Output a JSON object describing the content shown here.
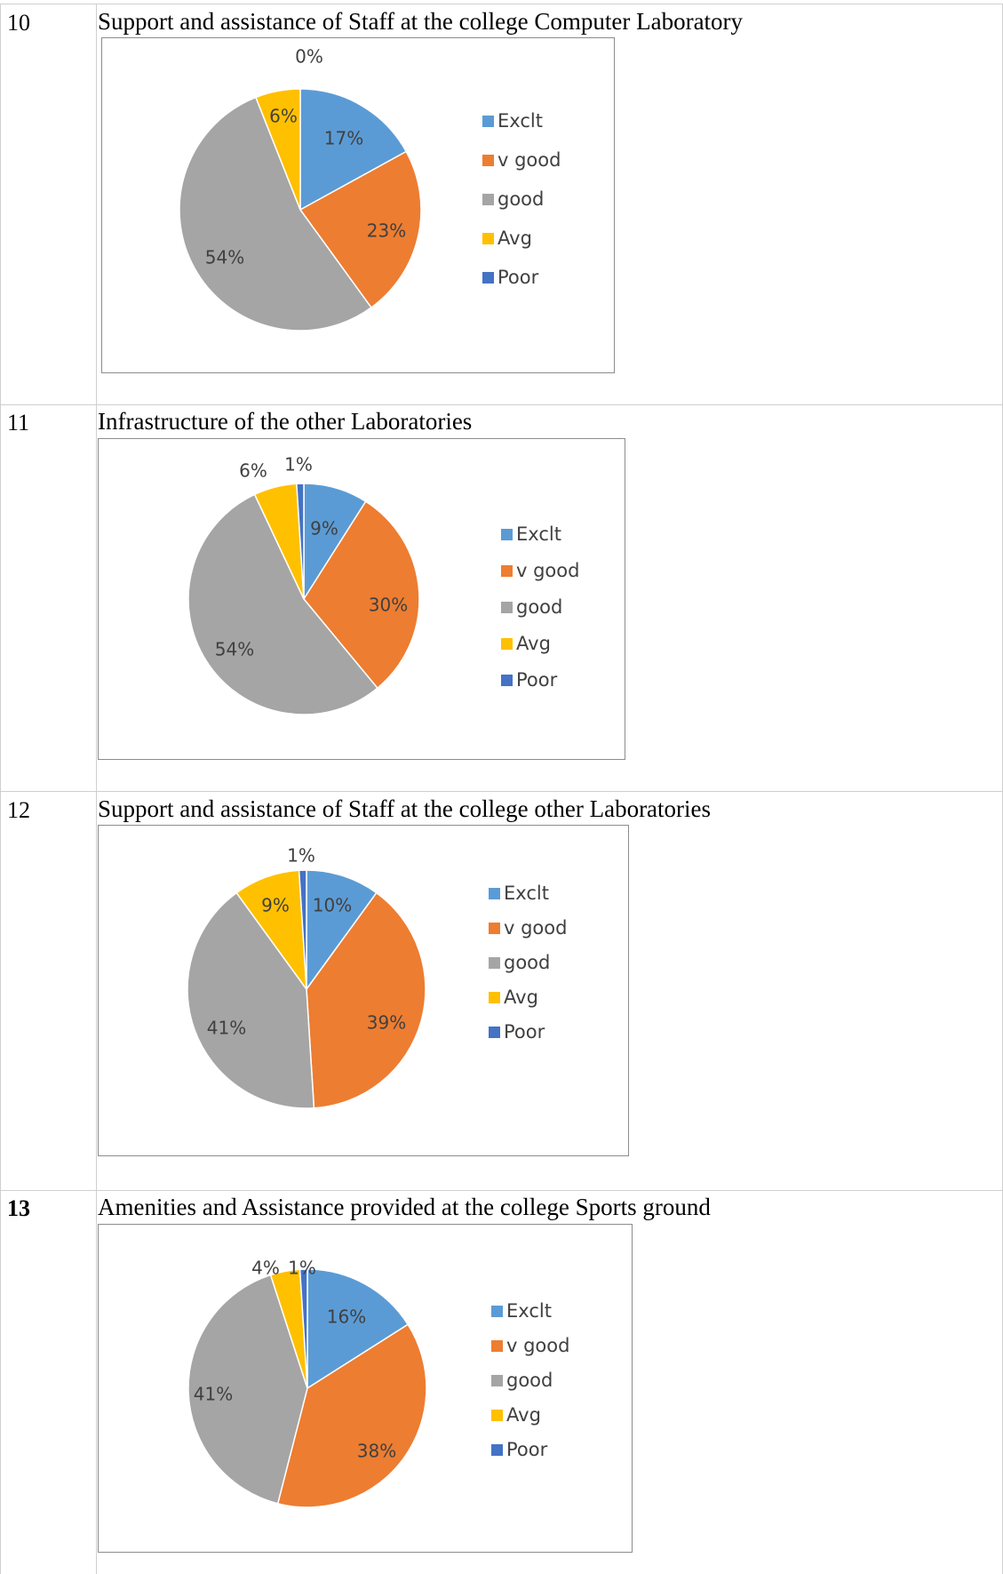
{
  "rows": [
    {
      "number": "10",
      "bold": false,
      "title": "Support and assistance of Staff at the college Computer Laboratory"
    },
    {
      "number": "11",
      "bold": false,
      "title": "Infrastructure of the other Laboratories"
    },
    {
      "number": "12",
      "bold": false,
      "title": "Support and assistance of Staff at the college other Laboratories"
    },
    {
      "number": "13",
      "bold": true,
      "title": "Amenities and Assistance provided at the college Sports ground"
    }
  ],
  "colors": {
    "Exclt": "#5b9bd5",
    "v good": "#ed7d31",
    "good": "#a5a5a5",
    "Avg": "#ffc000",
    "Poor": "#4472c4"
  },
  "chart_data": [
    {
      "type": "pie",
      "categories": [
        "Exclt",
        "v good",
        "good",
        "Avg",
        "Poor"
      ],
      "values": [
        17,
        23,
        54,
        6,
        0
      ],
      "data_labels": [
        "17%",
        "23%",
        "54%",
        "6%",
        "0%"
      ],
      "legend": [
        "Exclt",
        "v good",
        "good",
        "Avg",
        "Poor"
      ],
      "legend_position": "right"
    },
    {
      "type": "pie",
      "categories": [
        "Exclt",
        "v good",
        "good",
        "Avg",
        "Poor"
      ],
      "values": [
        9,
        30,
        54,
        6,
        1
      ],
      "data_labels": [
        "9%",
        "30%",
        "54%",
        "6%",
        "1%"
      ],
      "legend": [
        "Exclt",
        "v good",
        "good",
        "Avg",
        "Poor"
      ],
      "legend_position": "right"
    },
    {
      "type": "pie",
      "categories": [
        "Exclt",
        "v good",
        "good",
        "Avg",
        "Poor"
      ],
      "values": [
        10,
        39,
        41,
        9,
        1
      ],
      "data_labels": [
        "10%",
        "39%",
        "41%",
        "9%",
        "1%"
      ],
      "legend": [
        "Exclt",
        "v good",
        "good",
        "Avg",
        "Poor"
      ],
      "legend_position": "right"
    },
    {
      "type": "pie",
      "categories": [
        "Exclt",
        "v good",
        "good",
        "Avg",
        "Poor"
      ],
      "values": [
        16,
        38,
        41,
        4,
        1
      ],
      "data_labels": [
        "16%",
        "38%",
        "41%",
        "4%",
        "1%"
      ],
      "legend": [
        "Exclt",
        "v good",
        "good",
        "Avg",
        "Poor"
      ],
      "legend_position": "right"
    }
  ]
}
